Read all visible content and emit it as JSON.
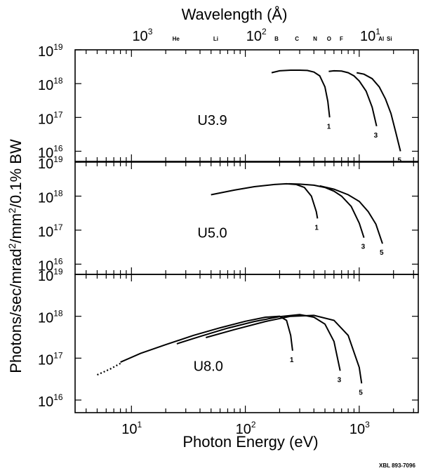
{
  "figure": {
    "top_axis_title": "Wavelength (Å)",
    "y_axis_title_parts": [
      "Photons/sec/mrad",
      "2",
      "/mm",
      "2",
      "/0.1% BW"
    ],
    "x_axis_title": "Photon Energy (eV)",
    "credit": "XBL 893-7096",
    "top_ticks": [
      {
        "base": "10",
        "exp": "3",
        "wavelength": 1000
      },
      {
        "base": "10",
        "exp": "2",
        "wavelength": 100
      },
      {
        "base": "10",
        "exp": "1",
        "wavelength": 10
      }
    ],
    "element_markers": [
      {
        "label": "He",
        "energy_ev": 24.6
      },
      {
        "label": "Li",
        "energy_ev": 55
      },
      {
        "label": "B",
        "energy_ev": 188
      },
      {
        "label": "C",
        "energy_ev": 284
      },
      {
        "label": "N",
        "energy_ev": 410
      },
      {
        "label": "O",
        "energy_ev": 543
      },
      {
        "label": "F",
        "energy_ev": 697
      },
      {
        "label": "Al",
        "energy_ev": 1560
      },
      {
        "label": "Si",
        "energy_ev": 1839
      }
    ]
  },
  "chart_data": {
    "type": "line",
    "x_scale": "log",
    "y_scale": "log",
    "x_label": "Photon Energy (eV)",
    "y_label": "Photons/sec/mrad2/mm2/0.1% BW",
    "top_x_label": "Wavelength (Å)",
    "xlim": [
      3.2,
      3300
    ],
    "ylim": [
      5000000000000000.0,
      1e+19
    ],
    "x_ticks": [
      {
        "base": "10",
        "exp": "1",
        "value": 10
      },
      {
        "base": "10",
        "exp": "2",
        "value": 100
      },
      {
        "base": "10",
        "exp": "3",
        "value": 1000
      }
    ],
    "y_ticks": [
      {
        "base": "10",
        "exp": "16",
        "value": 1e+16
      },
      {
        "base": "10",
        "exp": "17",
        "value": 1e+17
      },
      {
        "base": "10",
        "exp": "18",
        "value": 1e+18
      },
      {
        "base": "10",
        "exp": "19",
        "value": 1e+19
      }
    ],
    "panels": [
      {
        "label": "U3.9",
        "series": [
          {
            "name": "1",
            "points": [
              [
                170,
                2.1e+18
              ],
              [
                200,
                2.4e+18
              ],
              [
                250,
                2.5e+18
              ],
              [
                300,
                2.5e+18
              ],
              [
                350,
                2.45e+18
              ],
              [
                400,
                2.2e+18
              ],
              [
                450,
                1.7e+18
              ],
              [
                500,
                8e+17
              ],
              [
                530,
                3e+17
              ],
              [
                550,
                1e+17
              ]
            ]
          },
          {
            "name": "3",
            "points": [
              [
                540,
                2.3e+18
              ],
              [
                600,
                2.4e+18
              ],
              [
                700,
                2.35e+18
              ],
              [
                800,
                2.1e+18
              ],
              [
                900,
                1.7e+18
              ],
              [
                1000,
                1.2e+18
              ],
              [
                1150,
                6e+17
              ],
              [
                1300,
                2e+17
              ],
              [
                1420,
                5.5e+16
              ]
            ]
          },
          {
            "name": "5",
            "points": [
              [
                950,
                2.1e+18
              ],
              [
                1100,
                1.9e+18
              ],
              [
                1300,
                1.4e+18
              ],
              [
                1500,
                8e+17
              ],
              [
                1700,
                3.5e+17
              ],
              [
                1900,
                1.3e+17
              ],
              [
                2100,
                3.5e+16
              ],
              [
                2300,
                1e+16
              ]
            ]
          }
        ]
      },
      {
        "label": "U5.0",
        "series": [
          {
            "name": "1",
            "points": [
              [
                50,
                1.1e+18
              ],
              [
                80,
                1.5e+18
              ],
              [
                120,
                1.9e+18
              ],
              [
                180,
                2.2e+18
              ],
              [
                230,
                2.3e+18
              ],
              [
                280,
                2.2e+18
              ],
              [
                330,
                1.8e+18
              ],
              [
                380,
                1e+18
              ],
              [
                420,
                3.5e+17
              ],
              [
                430,
                2.2e+17
              ]
            ]
          },
          {
            "name": "3",
            "points": [
              [
                240,
                2.3e+18
              ],
              [
                300,
                2.25e+18
              ],
              [
                400,
                2.1e+18
              ],
              [
                500,
                1.8e+18
              ],
              [
                600,
                1.4e+18
              ],
              [
                700,
                1e+18
              ],
              [
                850,
                5e+17
              ],
              [
                1000,
                1.6e+17
              ],
              [
                1100,
                6e+16
              ]
            ]
          },
          {
            "name": "5",
            "points": [
              [
                450,
                2e+18
              ],
              [
                600,
                1.6e+18
              ],
              [
                800,
                1.1e+18
              ],
              [
                1000,
                7e+17
              ],
              [
                1200,
                3.5e+17
              ],
              [
                1400,
                1.5e+17
              ],
              [
                1600,
                4e+16
              ]
            ]
          }
        ]
      },
      {
        "label": "U8.0",
        "series": [
          {
            "name": "",
            "points": [
              [
                5,
                4e+16
              ],
              [
                6.5,
                5.5e+16
              ],
              [
                8,
                7.5e+16
              ]
            ]
          },
          {
            "name": "1",
            "points": [
              [
                8,
                8e+16
              ],
              [
                12,
                1.3e+17
              ],
              [
                20,
                2.1e+17
              ],
              [
                35,
                3.5e+17
              ],
              [
                60,
                5.3e+17
              ],
              [
                100,
                7.6e+17
              ],
              [
                150,
                9.5e+17
              ],
              [
                200,
                1e+18
              ],
              [
                230,
                8e+17
              ],
              [
                250,
                3.5e+17
              ],
              [
                260,
                1.5e+17
              ]
            ]
          },
          {
            "name": "3",
            "points": [
              [
                25,
                2.2e+17
              ],
              [
                40,
                3.3e+17
              ],
              [
                70,
                5.2e+17
              ],
              [
                120,
                7.5e+17
              ],
              [
                200,
                9.8e+17
              ],
              [
                300,
                1.1e+18
              ],
              [
                400,
                9.5e+17
              ],
              [
                500,
                6.5e+17
              ],
              [
                600,
                2.5e+17
              ],
              [
                680,
                5e+16
              ]
            ]
          },
          {
            "name": "5",
            "points": [
              [
                45,
                3.1e+17
              ],
              [
                80,
                4.8e+17
              ],
              [
                150,
                7.5e+17
              ],
              [
                250,
                1e+18
              ],
              [
                400,
                1.05e+18
              ],
              [
                600,
                8e+17
              ],
              [
                800,
                3.5e+17
              ],
              [
                1000,
                6e+16
              ],
              [
                1050,
                2.5e+16
              ]
            ]
          }
        ]
      }
    ]
  }
}
